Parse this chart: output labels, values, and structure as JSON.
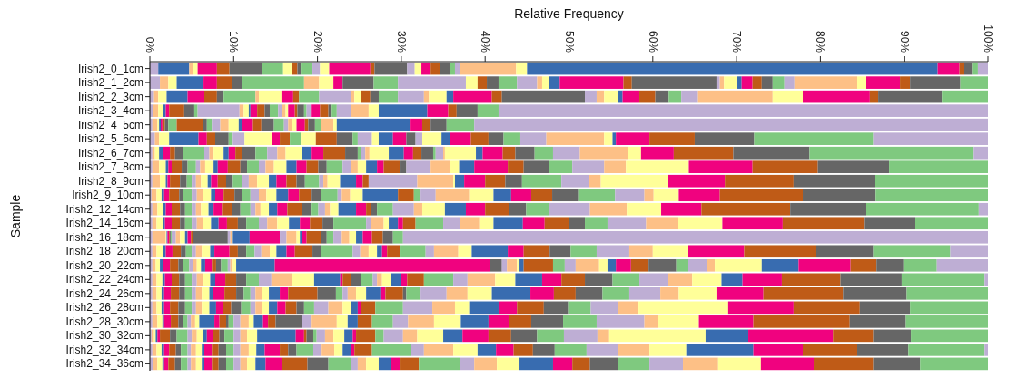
{
  "chart_data": {
    "type": "bar",
    "orientation": "horizontal",
    "stacked": true,
    "xlabel": "Relative Frequency",
    "ylabel": "Sample",
    "categories": [
      "Irish2_0_1cm",
      "Irish2_1_2cm",
      "Irish2_2_3cm",
      "Irish2_3_4cm",
      "Irish2_4_5cm",
      "Irish2_5_6cm",
      "Irish2_6_7cm",
      "Irish2_7_8cm",
      "Irish2_8_9cm",
      "Irish2_9_10cm",
      "Irish2_12_14cm",
      "Irish2_14_16cm",
      "Irish2_16_18cm",
      "Irish2_18_20cm",
      "Irish2_20_22cm",
      "Irish2_22_24cm",
      "Irish2_24_26cm",
      "Irish2_26_28cm",
      "Irish2_28_30cm",
      "Irish2_30_32cm",
      "Irish2_32_34cm",
      "Irish2_34_36cm"
    ],
    "xlim": [
      0,
      100
    ],
    "xticks": [
      {
        "value": 0,
        "label": "0%"
      },
      {
        "value": 10,
        "label": "10%"
      },
      {
        "value": 20,
        "label": "20%"
      },
      {
        "value": 30,
        "label": "30%"
      },
      {
        "value": 40,
        "label": "40%"
      },
      {
        "value": 50,
        "label": "50%"
      },
      {
        "value": 60,
        "label": "60%"
      },
      {
        "value": 70,
        "label": "70%"
      },
      {
        "value": 80,
        "label": "80%"
      },
      {
        "value": 90,
        "label": "90%"
      },
      {
        "value": 100,
        "label": "100%"
      }
    ],
    "series": [
      {
        "color": "#beaed4",
        "values": [
          1,
          1.2,
          0.5,
          0.4,
          0.3,
          0.6,
          0.3,
          0.3,
          0.3,
          0.2,
          0.3,
          0.3,
          0.3,
          0.3,
          0.3,
          0.3,
          0.3,
          0.3,
          0.3,
          0.2,
          0.3,
          0.4
        ]
      },
      {
        "color": "#fdc086",
        "values": [
          0,
          1,
          0.5,
          0.6,
          0.6,
          0.5,
          0.3,
          0.8,
          0.9,
          0.6,
          0.6,
          0.5,
          1.6,
          0.5,
          0.4,
          0.5,
          0.5,
          0.5,
          0.6,
          0.3,
          0.5,
          0.5
        ]
      },
      {
        "color": "#ffff99",
        "values": [
          0,
          1,
          1,
          0.6,
          0.2,
          1.2,
          0.5,
          0.8,
          0.7,
          0.6,
          0.7,
          0.8,
          0.1,
          0.8,
          0.5,
          0.7,
          0.6,
          0.6,
          0.6,
          0.2,
          0.6,
          0.6
        ]
      },
      {
        "color": "#386cb0",
        "values": [
          3.7,
          3.2,
          2.5,
          0.3,
          0.2,
          3.5,
          0.5,
          0.3,
          0.2,
          0.3,
          0.3,
          0.2,
          0.1,
          0.3,
          0.4,
          0.3,
          0.3,
          0.3,
          0.2,
          0.2,
          0.3,
          0.2
        ]
      },
      {
        "color": "#f0027f",
        "values": [
          0,
          1.6,
          2,
          0.4,
          0.2,
          1,
          0.8,
          0.4,
          0.3,
          0.6,
          0.7,
          0.8,
          0.2,
          0.8,
          0.8,
          0.8,
          0.8,
          0.7,
          0.8,
          0.3,
          0.6,
          0.5
        ]
      },
      {
        "color": "#bf5b17",
        "values": [
          0,
          1.8,
          1.5,
          1.8,
          0.3,
          1,
          0.6,
          1.2,
          1.2,
          1.2,
          1,
          1,
          0.1,
          1,
          1,
          0.9,
          1,
          1,
          0.9,
          1.2,
          0.8,
          0.8
        ]
      },
      {
        "color": "#666666",
        "values": [
          0,
          1.2,
          0.8,
          1.2,
          0.4,
          1.6,
          0.9,
          0.7,
          0.8,
          0.5,
          0.6,
          0.6,
          0.1,
          0.6,
          0.5,
          0.7,
          0.7,
          0.8,
          0.5,
          0.8,
          0.6,
          0.7
        ]
      },
      {
        "color": "#7fc97f",
        "values": [
          0,
          7.4,
          3.8,
          0.4,
          1,
          0.5,
          2.6,
          1,
          0.6,
          1,
          0.8,
          0.8,
          0.1,
          0.7,
          0.8,
          0.8,
          0.8,
          0.8,
          0.6,
          1.3,
          0.8,
          0.8
        ]
      },
      {
        "color": "#beaed4",
        "values": [
          0,
          0,
          0,
          5,
          0,
          1.4,
          0.6,
          0.5,
          0.5,
          0.6,
          0.5,
          0.6,
          0.5,
          0.5,
          0.4,
          0.6,
          0.5,
          0.5,
          0.4,
          0.5,
          0.4,
          0.4
        ]
      },
      {
        "color": "#fdc086",
        "values": [
          0.5,
          1.8,
          0.4,
          0.5,
          0,
          0,
          0.5,
          0.6,
          0.6,
          0.7,
          0.6,
          0.7,
          0.5,
          0.7,
          0.5,
          0.8,
          0.7,
          0.7,
          0.5,
          0.6,
          0.6,
          0.6
        ]
      },
      {
        "color": "#ffff99",
        "values": [
          0.5,
          1.7,
          2.7,
          0.6,
          0,
          3.3,
          1.2,
          1,
          0.8,
          1,
          0.9,
          1,
          0.6,
          1,
          0.5,
          0.8,
          0.9,
          0.9,
          0.5,
          0.7,
          0.7,
          0.7
        ]
      },
      {
        "color": "#386cb0",
        "values": [
          0,
          0,
          0,
          0.2,
          0,
          0,
          0.6,
          0.5,
          0.4,
          0.5,
          0.6,
          0.9,
          0.3,
          0.5,
          0.5,
          0.6,
          0.4,
          0.8,
          1.8,
          0.5,
          0.3,
          0.3
        ]
      },
      {
        "color": "#f0027f",
        "values": [
          2.3,
          1.1,
          1.4,
          0.8,
          0,
          0.9,
          0.8,
          1.2,
          0.8,
          1,
          1,
          1,
          0.4,
          1.8,
          0.8,
          1.2,
          1.4,
          0.8,
          0.6,
          0.7,
          0.9,
          0.9
        ]
      },
      {
        "color": "#bf5b17",
        "values": [
          1.5,
          0,
          0.7,
          0.9,
          3.1,
          1.2,
          0.8,
          1.5,
          1,
          1.3,
          1.2,
          1.3,
          0.2,
          1,
          0.5,
          1.3,
          1.4,
          1,
          0.8,
          0.8,
          0.8,
          0.8
        ]
      },
      {
        "color": "#666666",
        "values": [
          3.9,
          3.7,
          0,
          0.6,
          0.5,
          0,
          1.6,
          0.8,
          0.8,
          0.9,
          1,
          1,
          4.2,
          1,
          0.6,
          1.2,
          0.9,
          1.2,
          0.3,
          0.6,
          0.9,
          0.9
        ]
      },
      {
        "color": "#7fc97f",
        "values": [
          2.5,
          2.9,
          2.4,
          1,
          0.6,
          1.3,
          1.4,
          1.4,
          1.1,
          1,
          1.2,
          1.5,
          0,
          1,
          0.8,
          1.5,
          0.8,
          1.1,
          0.6,
          1.1,
          0.9,
          0.9
        ]
      },
      {
        "color": "#beaed4",
        "values": [
          0,
          8.1,
          3.8,
          0.5,
          1,
          0,
          1.2,
          0.8,
          0.8,
          1,
          0.6,
          1,
          0.3,
          0.8,
          0.3,
          1.5,
          0.6,
          0.6,
          0.8,
          0.8,
          0.8,
          0.8
        ]
      },
      {
        "color": "#fdc086",
        "values": [
          0,
          0,
          0.4,
          0.4,
          1,
          0,
          1,
          1,
          1,
          0.9,
          0.6,
          1.2,
          0.2,
          1,
          0.3,
          2.5,
          0.8,
          0.8,
          1,
          0.8,
          1,
          0.8
        ]
      },
      {
        "color": "#ffff99",
        "values": [
          1.1,
          1.4,
          0.8,
          0.3,
          1.2,
          1.8,
          2,
          1.5,
          1.4,
          1.2,
          1,
          1.4,
          0.1,
          0.8,
          0.4,
          2.6,
          0.8,
          0.8,
          0.6,
          1.2,
          0.9,
          1
        ]
      },
      {
        "color": "#386cb0",
        "values": [
          0,
          0,
          0,
          0,
          0.4,
          0,
          1,
          1.2,
          0.9,
          1.4,
          1,
          1.3,
          2,
          1.2,
          4.6,
          3.1,
          1.3,
          1,
          1.1,
          4.6,
          1,
          1.2
        ]
      },
      {
        "color": "#f0027f",
        "values": [
          0,
          0,
          0,
          0.8,
          1.3,
          0,
          1.5,
          1.2,
          1.2,
          1.3,
          1.2,
          1.2,
          3.6,
          1,
          25.7,
          0.3,
          1,
          1,
          0.6,
          1,
          1.8,
          2
        ]
      },
      {
        "color": "#bf5b17",
        "values": [
          0.6,
          1.1,
          1.1,
          0.3,
          1,
          2.5,
          2.6,
          1.4,
          1.2,
          1.4,
          1.8,
          1.5,
          0,
          2.1,
          0,
          1,
          3.5,
          1.3,
          0.9,
          0.3,
          1,
          3
        ]
      },
      {
        "color": "#666666",
        "values": [
          0.4,
          1.4,
          1,
          0.8,
          1.5,
          1.9,
          1.5,
          1,
          1,
          1.2,
          1,
          1.3,
          0,
          1,
          1.4,
          1.2,
          2.2,
          0.9,
          3.2,
          0.8,
          1,
          2.5
        ]
      },
      {
        "color": "#7fc97f",
        "values": [
          1.4,
          2.2,
          2.3,
          0.3,
          1.2,
          0.6,
          0.4,
          1.9,
          1.7,
          2,
          0.9,
          3.9,
          0,
          3.8,
          0,
          1.4,
          0.8,
          1.2,
          0,
          0.4,
          2,
          2.7
        ]
      },
      {
        "color": "#beaed4",
        "values": [
          0.9,
          2.4,
          3.1,
          0.5,
          0.5,
          1.7,
          0.5,
          1,
          0.5,
          0.5,
          0.8,
          0.6,
          0.8,
          0.9,
          0.6,
          0.5,
          0.6,
          1.7,
          1,
          1,
          1,
          0.8
        ]
      },
      {
        "color": "#fdc086",
        "values": [
          0,
          0.6,
          0.6,
          0,
          0.5,
          0,
          0.5,
          0.8,
          0.5,
          1,
          0.6,
          1.5,
          1.2,
          1,
          1.2,
          0.6,
          1,
          1.7,
          3.1,
          1,
          1.5,
          1
        ]
      },
      {
        "color": "#ffff99",
        "values": [
          1.1,
          0.8,
          2.1,
          0,
          0.5,
          0.8,
          2.3,
          1,
          1.5,
          1.5,
          1,
          0.6,
          0.4,
          1,
          0.3,
          1.1,
          1.2,
          1,
          1.3,
          1.3,
          1,
          1.5
        ]
      },
      {
        "color": "#386cb0",
        "values": [
          0,
          1.3,
          0.8,
          0,
          0,
          1.7,
          1.8,
          1.3,
          1.9,
          4.2,
          2.1,
          1.1,
          0.3,
          0.6,
          0.5,
          1.2,
          1.7,
          0.8,
          1.2,
          1,
          1,
          1.5
        ]
      },
      {
        "color": "#f0027f",
        "values": [
          4.9,
          7.6,
          4.6,
          1.1,
          1,
          1.6,
          1.1,
          0.8,
          0.8,
          0,
          1.2,
          0.6,
          0.5,
          0.6,
          0,
          0.7,
          0.6,
          0.4,
          0,
          0.4,
          0.4,
          1
        ]
      },
      {
        "color": "#bf5b17",
        "values": [
          0.5,
          1,
          1.2,
          1,
          0.4,
          0,
          1,
          1.9,
          0.7,
          1.9,
          0.6,
          1.5,
          1.7,
          1.5,
          3.5,
          2,
          2.1,
          1.7,
          1.7,
          2.3,
          2.1,
          2.3
        ]
      },
      {
        "color": "#666666",
        "values": [
          3.9,
          10.1,
          9.9,
          0.4,
          0.8,
          1.1,
          1.4,
          0.8,
          0,
          0,
          0.7,
          0,
          0.7,
          0,
          0,
          0,
          0.4,
          0,
          0,
          0,
          0,
          0
        ]
      },
      {
        "color": "#7fc97f",
        "values": [
          0,
          0,
          0,
          0.6,
          0.7,
          0,
          0.3,
          0,
          0,
          0.8,
          1.9,
          3.3,
          0.8,
          3.1,
          1.4,
          3.5,
          1.7,
          3.3,
          2.5,
          1,
          4.7,
          4.9
        ]
      },
      {
        "color": "#beaed4",
        "values": [
          0.9,
          0.4,
          1.4,
          1.7,
          0,
          0.8,
          0.9,
          2.9,
          5.8,
          1.8,
          2.5,
          2,
          1,
          1,
          1.3,
          1.7,
          3.1,
          3.5,
          1.8,
          2.3,
          1.5,
          1.7
        ]
      },
      {
        "color": "#fdc086",
        "values": [
          0,
          0.5,
          0.9,
          2.1,
          1.5,
          0,
          0.2,
          2.3,
          4.3,
          4,
          1,
          2.3,
          0.9,
          2.9,
          2.8,
          3.3,
          2.5,
          2.7,
          3.1,
          1.7,
          3.5,
          2.7
        ]
      },
      {
        "color": "#ffff99",
        "values": [
          0.8,
          1.6,
          1.6,
          1.2,
          0.4,
          2.3,
          3.7,
          1.1,
          0.2,
          2.9,
          2.7,
          1.7,
          0.8,
          1.6,
          1,
          2.4,
          2.9,
          1.7,
          3.2,
          3.1,
          2.9,
          2.7
        ]
      },
      {
        "color": "#386cb0",
        "values": [
          0,
          0.5,
          0.6,
          5.8,
          8.7,
          1,
          0.8,
          1.8,
          1.1,
          2.1,
          2.5,
          3.5,
          0.8,
          4.3,
          1,
          3.2,
          4.6,
          3.5,
          3.3,
          2.3,
          2.2,
          4
        ]
      },
      {
        "color": "#f0027f",
        "values": [
          1.1,
          1.3,
          2,
          2.5,
          1.5,
          2.5,
          2.4,
          4,
          2.5,
          2.4,
          2.3,
          2.6,
          1.1,
          1.9,
          1.8,
          2.3,
          2.8,
          2.2,
          2.4,
          3.1,
          2.1,
          2.3
        ]
      },
      {
        "color": "#bf5b17",
        "values": [
          1.1,
          1.1,
          1.9,
          1,
          1,
          2.1,
          1.5,
          1.9,
          2.4,
          2.5,
          2.8,
          2.9,
          1.3,
          3.1,
          2.1,
          2.8,
          2.6,
          3.2,
          2.7,
          2.7,
          2.3,
          2.1
        ]
      },
      {
        "color": "#666666",
        "values": [
          1.2,
          1.3,
          1.6,
          2.5,
          1.9,
          1.8,
          2.3,
          3,
          2,
          3.1,
          2.1,
          1.9,
          1.2,
          2.5,
          3.3,
          3.3,
          3.2,
          2.9,
          3.8,
          3.1,
          2.6,
          3.3
        ]
      },
      {
        "color": "#7fc97f",
        "values": [
          0.6,
          1.4,
          1.5,
          2.5,
          3.3,
          2,
          2.2,
          2.8,
          4.7,
          4.4,
          2.7,
          2.7,
          1.2,
          3.1,
          1.4,
          3.2,
          3.2,
          2.7,
          4,
          3.2,
          3.8,
          3.8
        ]
      },
      {
        "color": "#beaed4",
        "values": [
          0.6,
          1.2,
          2,
          0,
          0,
          3.1,
          3.2,
          3.8,
          3.3,
          3.5,
          4.9,
          4.6,
          0,
          3.9,
          2.3,
          3.4,
          3.7,
          3.3,
          5.7,
          4,
          3.7,
          4
        ]
      },
      {
        "color": "#fdc086",
        "values": [
          6.7,
          7.5,
          8.9,
          0,
          0,
          6.9,
          5.7,
          2.6,
          1.4,
          1.1,
          4.4,
          3.8,
          0,
          2.8,
          0.9,
          2.9,
          2.2,
          2.4,
          1.6,
          1.4,
          3.8,
          4.2
        ]
      },
      {
        "color": "#ffff99",
        "values": [
          1.3,
          1,
          3.6,
          0,
          0,
          1,
          1.6,
          7.5,
          8,
          3,
          4.1,
          5.3,
          0,
          4.2,
          5.6,
          3.5,
          4.5,
          10.7,
          4.9,
          11.5,
          4.4,
          5.1
        ]
      },
      {
        "color": "#386cb0",
        "values": [
          49,
          0,
          0,
          0,
          0,
          0.4,
          0,
          0,
          0,
          0,
          0,
          0,
          0,
          0,
          4.4,
          2.5,
          0,
          0,
          0,
          5.1,
          8,
          0
        ]
      },
      {
        "color": "#f0027f",
        "values": [
          2.6,
          4.1,
          8,
          0,
          0,
          4,
          3.9,
          7.6,
          6.8,
          4.9,
          4.8,
          7.2,
          0,
          6.7,
          6.2,
          4.7,
          5.6,
          7.8,
          6.5,
          10.1,
          5.9,
          6.3
        ]
      },
      {
        "color": "#bf5b17",
        "values": [
          0.5,
          1.2,
          1,
          0,
          0,
          5.4,
          7.1,
          7.8,
          8.2,
          9.9,
          10.6,
          9.7,
          0,
          8.6,
          3.1,
          7,
          9.5,
          7.9,
          11.5,
          4.8,
          6.5,
          7.1
        ]
      },
      {
        "color": "#666666",
        "values": [
          1,
          6,
          7.6,
          0,
          0,
          7.1,
          9.1,
          8.5,
          9.7,
          8.7,
          9,
          6.1,
          0,
          6.8,
          3.2,
          7.3,
          7.6,
          6,
          6.7,
          4.5,
          6.1,
          5.6
        ]
      },
      {
        "color": "#7fc97f",
        "values": [
          0.7,
          3.3,
          5.5,
          0,
          0,
          14.2,
          19.5,
          11.8,
          13.5,
          13.4,
          13.5,
          8.7,
          0,
          9.2,
          4,
          9.9,
          9.7,
          9.3,
          9.8,
          9.2,
          9.1,
          8.1
        ]
      },
      {
        "color": "#beaed4",
        "values": [
          1.2,
          0,
          0,
          58.4,
          61.3,
          13.7,
          1.8,
          0,
          0,
          0,
          1.1,
          0,
          69.8,
          4.5,
          6.1,
          0.4,
          0,
          0,
          0,
          0,
          0.4,
          0
        ]
      }
    ]
  }
}
